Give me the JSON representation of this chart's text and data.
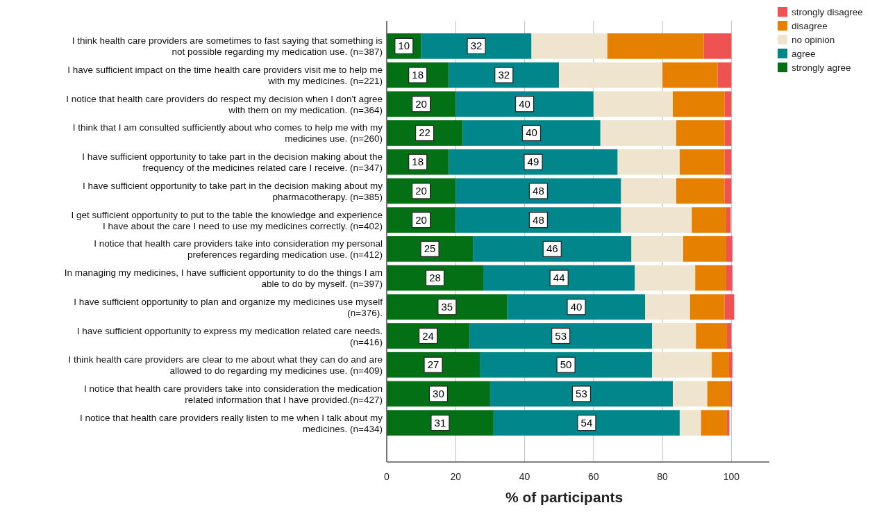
{
  "chart_data": {
    "type": "bar",
    "orientation": "horizontal",
    "stacked": true,
    "xlabel": "% of participants",
    "categories": [
      "I think health care providers are sometimes to fast saying that something is not possible regarding my medication use. (n=387)",
      "I have sufficient impact on the time health care providers visit me to help me with my medicines. (n=221)",
      "I notice that health care providers do respect my decision when I don't agree with them on my medication. (n=364)",
      "I think that I am consulted sufficiently about who comes to help me with my medicines use. (n=260)",
      "I have sufficient opportunity to take part in the decision making about the frequency of the medicines related care I receive. (n=347)",
      "I have sufficient opportunity to take part in the decision making about my pharmacotherapy. (n=385)",
      "I get sufficient opportunity to put to the table the knowledge and experience I have about the care I need to use my medicines correctly. (n=402)",
      "I notice that health care providers take into consideration my personal preferences regarding medication use. (n=412)",
      "In managing my medicines, I have sufficient opportunity to do the things I am able to do by myself. (n=397)",
      "I have sufficient opportunity to plan and organize my medicines use myself (n=376).",
      "I have sufficient opportunity to express my medication related care needs. (n=416)",
      "I think health care providers are clear to me about what they can do and are allowed to do regarding my medicines use. (n=409)",
      "I notice that health care providers take into consideration the medication related information that I have provided.(n=427)",
      "I notice that health care providers really listen to me when I talk about my medicines. (n=434)"
    ],
    "series": [
      {
        "name": "strongly agree",
        "color": "#047015",
        "values": [
          10,
          18,
          20,
          22,
          18,
          20,
          20,
          25,
          28,
          35,
          24,
          27,
          30,
          31
        ],
        "value_labels": [
          "10",
          "18",
          "20",
          "22",
          "18",
          "20",
          "20",
          "25",
          "28",
          "35",
          "24",
          "27",
          "30",
          "31"
        ]
      },
      {
        "name": "agree",
        "color": "#00868b",
        "values": [
          32,
          32,
          40,
          40,
          49,
          48,
          48,
          46,
          44,
          40,
          53,
          50,
          53,
          54
        ],
        "value_labels": [
          "32",
          "32",
          "40",
          "40",
          "49",
          "48",
          "48",
          "46",
          "44",
          "40",
          "53",
          "50",
          "53",
          "54"
        ]
      },
      {
        "name": "no opinion",
        "color": "#efe4cd",
        "values": [
          22,
          30,
          23,
          22,
          18,
          16,
          20.5,
          15,
          17.5,
          13,
          12.7,
          17.3,
          10,
          6.2
        ]
      },
      {
        "name": "disagree",
        "color": "#e68000",
        "values": [
          28,
          16,
          15,
          14,
          13,
          14,
          10,
          12.5,
          9,
          10,
          9,
          5,
          6.7,
          7.5
        ]
      },
      {
        "name": "strongly disagree",
        "color": "#ee5253",
        "values": [
          8,
          4,
          2,
          2,
          2,
          2,
          1.3,
          1.8,
          1.8,
          2.8,
          1.3,
          1,
          0.5,
          0.7
        ]
      }
    ],
    "xlim": [
      0,
      111
    ],
    "xticks": [
      0,
      20,
      40,
      60,
      80,
      100
    ],
    "grid": "x",
    "legend": "top right"
  }
}
